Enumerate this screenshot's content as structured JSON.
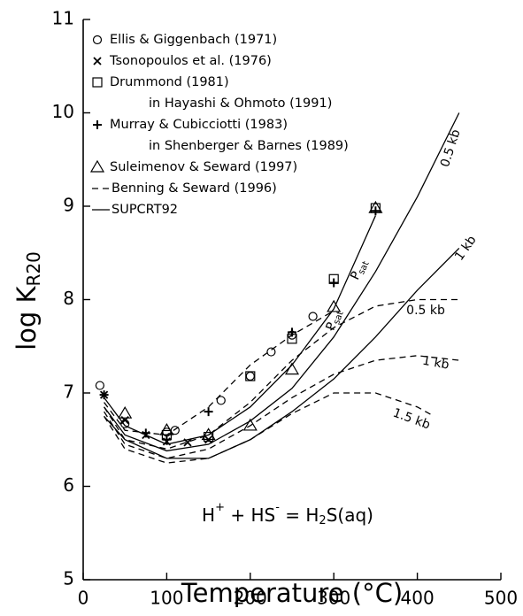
{
  "chart_data": {
    "type": "scatter",
    "x_label": "Temperature (°C)",
    "y_label": {
      "text": "log K",
      "sub": "R20"
    },
    "xlim": [
      0,
      500
    ],
    "xticks": [
      0,
      100,
      200,
      300,
      400,
      500
    ],
    "ylim": [
      5,
      11
    ],
    "yticks": [
      5,
      6,
      7,
      8,
      9,
      10,
      11
    ],
    "equation": [
      {
        "text": "H"
      },
      {
        "sup": "+"
      },
      {
        "text": " + HS"
      },
      {
        "sup": "-"
      },
      {
        "text": " = H"
      },
      {
        "sub": "2"
      },
      {
        "text": "S(aq)"
      }
    ],
    "series": [
      {
        "name": "Ellis & Giggenbach (1971)",
        "marker": "circle",
        "color": "#000000",
        "x": [
          20,
          50,
          100,
          110,
          165,
          200,
          225,
          250,
          275
        ],
        "values": [
          7.08,
          6.67,
          6.58,
          6.6,
          6.92,
          7.18,
          7.44,
          7.62,
          7.82
        ]
      },
      {
        "name": "Tsonopoulos et al. (1976)",
        "marker": "cross",
        "color": "#000000",
        "x": [
          25,
          50,
          75,
          100,
          125,
          150
        ],
        "values": [
          6.98,
          6.71,
          6.55,
          6.48,
          6.47,
          6.5
        ]
      },
      {
        "name": "Drummond (1981)",
        "source": "in Hayashi & Ohmoto (1991)",
        "marker": "square",
        "color": "#000000",
        "x": [
          100,
          150,
          200,
          250,
          300,
          350
        ],
        "values": [
          6.55,
          6.53,
          7.18,
          7.58,
          8.22,
          8.98
        ]
      },
      {
        "name": "Murray & Cubicciotti (1983)",
        "source": "in Shenberger & Barnes (1989)",
        "marker": "plus",
        "color": "#000000",
        "x": [
          25,
          75,
          100,
          150,
          250,
          300,
          350
        ],
        "values": [
          6.98,
          6.57,
          6.5,
          6.8,
          7.65,
          8.18,
          8.95
        ]
      },
      {
        "name": "Suleimenov & Seward (1997)",
        "marker": "triangle",
        "color": "#000000",
        "x": [
          50,
          100,
          150,
          200,
          250,
          300,
          350
        ],
        "values": [
          6.78,
          6.6,
          6.55,
          6.65,
          7.25,
          7.92,
          8.98
        ]
      },
      {
        "name": "Benning & Seward (1996)",
        "line": "dashed",
        "color": "#000000",
        "curves": [
          {
            "label": "P",
            "label_sub": "sat",
            "label_at": [
              300,
              7.78
            ],
            "label_angle": -70,
            "x": [
              25,
              50,
              100,
              150,
              200,
              250,
              300
            ],
            "values": [
              6.9,
              6.6,
              6.55,
              6.85,
              7.3,
              7.62,
              7.88
            ]
          },
          {
            "label": "0.5 kb",
            "label_at": [
              410,
              7.88
            ],
            "label_angle": 0,
            "x": [
              25,
              50,
              100,
              150,
              200,
              250,
              300,
              350,
              400,
              450
            ],
            "values": [
              6.85,
              6.5,
              6.4,
              6.55,
              6.9,
              7.35,
              7.7,
              7.93,
              8.0,
              8.0
            ]
          },
          {
            "label": "1 kb",
            "label_at": [
              422,
              7.32
            ],
            "label_angle": 10,
            "x": [
              25,
              50,
              100,
              150,
              200,
              250,
              300,
              350,
              400,
              450
            ],
            "values": [
              6.8,
              6.45,
              6.3,
              6.4,
              6.65,
              6.95,
              7.2,
              7.35,
              7.4,
              7.35
            ]
          },
          {
            "label": "1.5 kb",
            "label_at": [
              393,
              6.72
            ],
            "label_angle": 20,
            "x": [
              25,
              50,
              100,
              150,
              200,
              250,
              300,
              350,
              400,
              420
            ],
            "values": [
              6.75,
              6.4,
              6.25,
              6.3,
              6.5,
              6.78,
              7.0,
              7.0,
              6.85,
              6.75
            ]
          }
        ]
      },
      {
        "name": "SUPCRT92",
        "line": "solid",
        "color": "#000000",
        "curves": [
          {
            "label": "0.5 kb",
            "label_at": [
              440,
              9.62
            ],
            "label_angle": -72,
            "x": [
              25,
              50,
              100,
              150,
              200,
              250,
              300,
              350,
              400,
              450
            ],
            "values": [
              6.85,
              6.55,
              6.38,
              6.45,
              6.7,
              7.05,
              7.6,
              8.3,
              9.1,
              10.0
            ]
          },
          {
            "label": "P",
            "label_sub": "sat",
            "label_at": [
              330,
              8.32
            ],
            "label_angle": -65,
            "x": [
              25,
              50,
              100,
              150,
              200,
              250,
              300,
              350
            ],
            "values": [
              6.95,
              6.65,
              6.45,
              6.55,
              6.85,
              7.3,
              7.9,
              8.9
            ]
          },
          {
            "label": "1 kb",
            "label_at": [
              458,
              8.55
            ],
            "label_angle": -55,
            "x": [
              25,
              50,
              100,
              150,
              200,
              250,
              300,
              350,
              400,
              450
            ],
            "values": [
              6.75,
              6.5,
              6.3,
              6.3,
              6.5,
              6.8,
              7.15,
              7.6,
              8.1,
              8.55
            ]
          }
        ]
      }
    ]
  }
}
